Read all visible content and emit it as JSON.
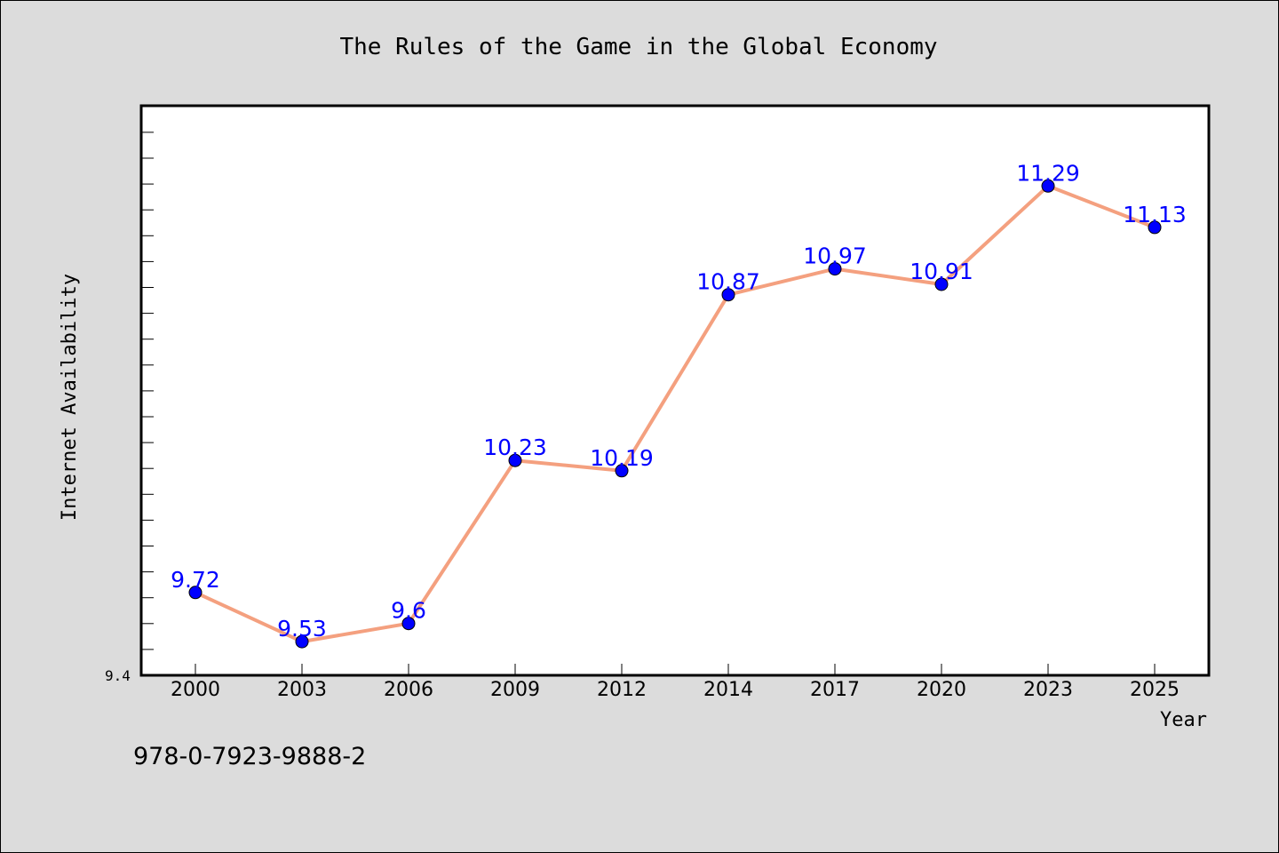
{
  "chart_data": {
    "type": "line",
    "title": "The Rules of the Game in the Global Economy",
    "xlabel": "Year",
    "ylabel": "Internet Availability",
    "categories": [
      "2000",
      "2003",
      "2006",
      "2009",
      "2012",
      "2014",
      "2017",
      "2020",
      "2023",
      "2025"
    ],
    "series": [
      {
        "values": [
          9.72,
          9.53,
          9.6,
          10.23,
          10.19,
          10.87,
          10.97,
          10.91,
          11.29,
          11.13
        ],
        "labels": [
          "9.72",
          "9.53",
          "9.6",
          "10.23",
          "10.19",
          "10.87",
          "10.97",
          "10.91",
          "11.29",
          "11.13"
        ]
      }
    ],
    "ylim": [
      9.4,
      11.6
    ],
    "ylim_label": "9.4",
    "grid": false,
    "line_color": "#f4a07f",
    "marker_color": "#0000ff",
    "label_color": "#0000ff"
  },
  "footer": {
    "isbn": "978-0-7923-9888-2"
  }
}
